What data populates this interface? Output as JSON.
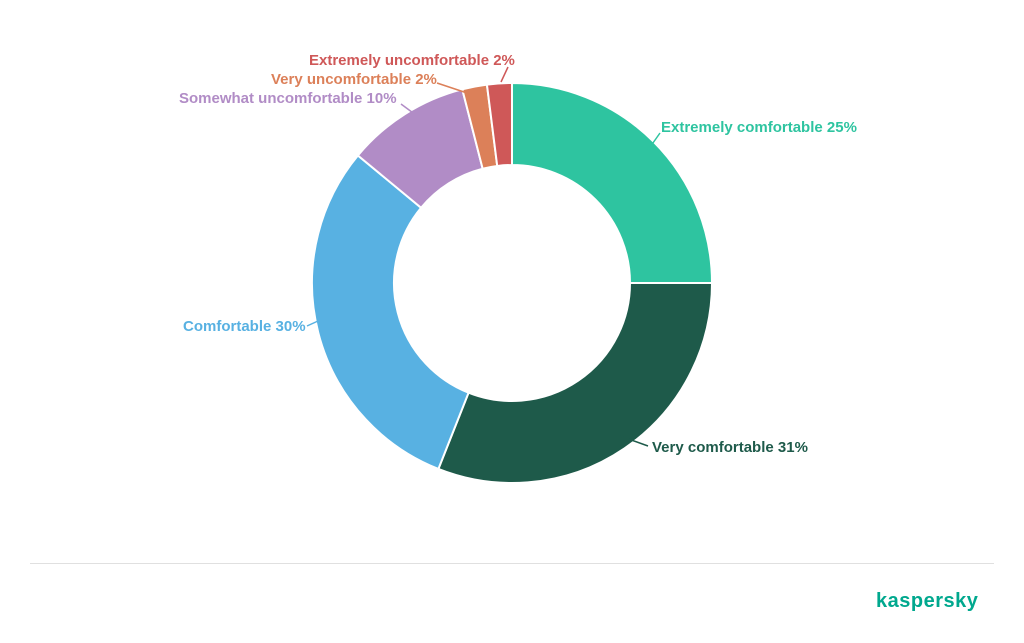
{
  "chart_data": {
    "type": "pie",
    "donut": true,
    "units": "%",
    "total": 100,
    "start_angle_deg": 0,
    "direction": "clockwise",
    "legend_position": "labels-outside-with-leader-lines",
    "segments": [
      {
        "label": "Extremely comfortable",
        "value": 25,
        "color": "#2ec4a0",
        "display": "Extremely comfortable 25%"
      },
      {
        "label": "Very comfortable",
        "value": 31,
        "color": "#1e5a4a",
        "display": "Very comfortable 31%"
      },
      {
        "label": "Comfortable",
        "value": 30,
        "color": "#58b1e2",
        "display": "Comfortable 30%"
      },
      {
        "label": "Somewhat uncomfortable",
        "value": 10,
        "color": "#b18cc6",
        "display": "Somewhat uncomfortable 10%"
      },
      {
        "label": "Very uncomfortable",
        "value": 2,
        "color": "#dc8059",
        "display": "Very uncomfortable 2%"
      },
      {
        "label": "Extremely uncomfortable",
        "value": 2,
        "color": "#cf5858",
        "display": "Extremely uncomfortable 2%"
      }
    ]
  },
  "footer": {
    "brand": "kaspersky",
    "brand_color": "#00a88e",
    "divider_color": "#e0e0e0"
  }
}
